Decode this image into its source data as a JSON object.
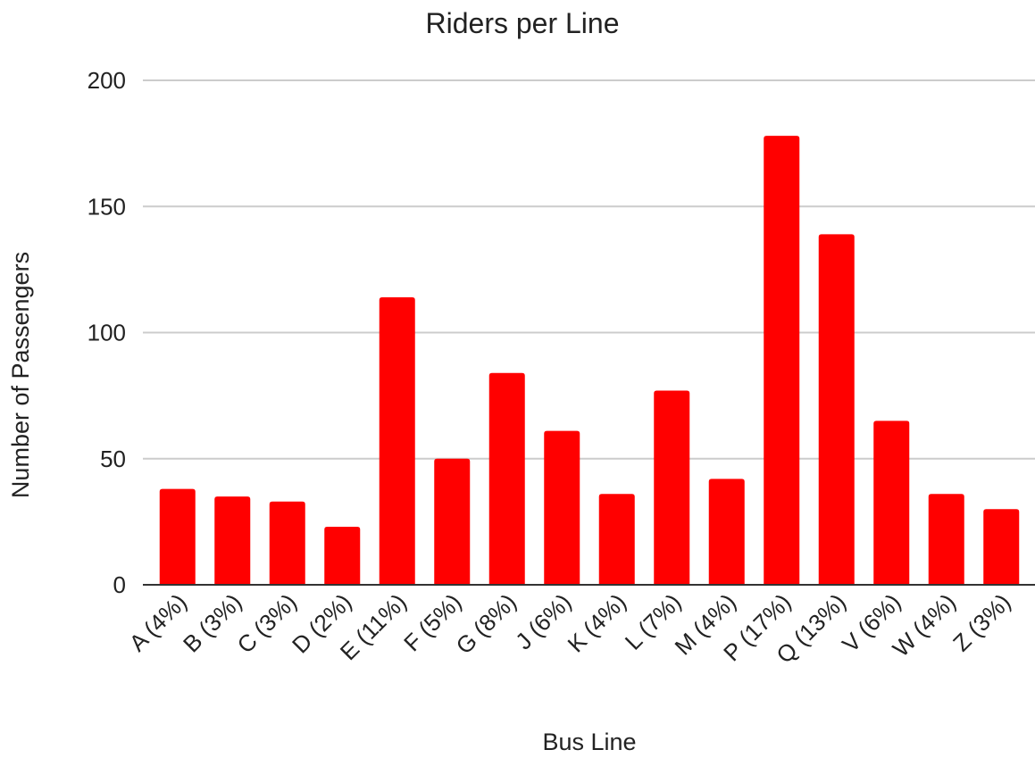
{
  "chart_data": {
    "type": "bar",
    "title": "Riders per Line",
    "xlabel": "Bus Line",
    "ylabel": "Number of Passengers",
    "categories": [
      "A (4%)",
      "B (3%)",
      "C (3%)",
      "D (2%)",
      "E (11%)",
      "F (5%)",
      "G (8%)",
      "J (6%)",
      "K (4%)",
      "L (7%)",
      "M (4%)",
      "P (17%)",
      "Q (13%)",
      "V (6%)",
      "W (4%)",
      "Z (3%)"
    ],
    "values": [
      38,
      35,
      33,
      23,
      114,
      50,
      84,
      61,
      36,
      77,
      42,
      178,
      139,
      65,
      36,
      30
    ],
    "ylim": [
      0,
      200
    ],
    "yticks": [
      "0",
      "50",
      "100",
      "150",
      "200"
    ],
    "grid": true,
    "legend": "none",
    "bar_color": "#ff0000"
  }
}
